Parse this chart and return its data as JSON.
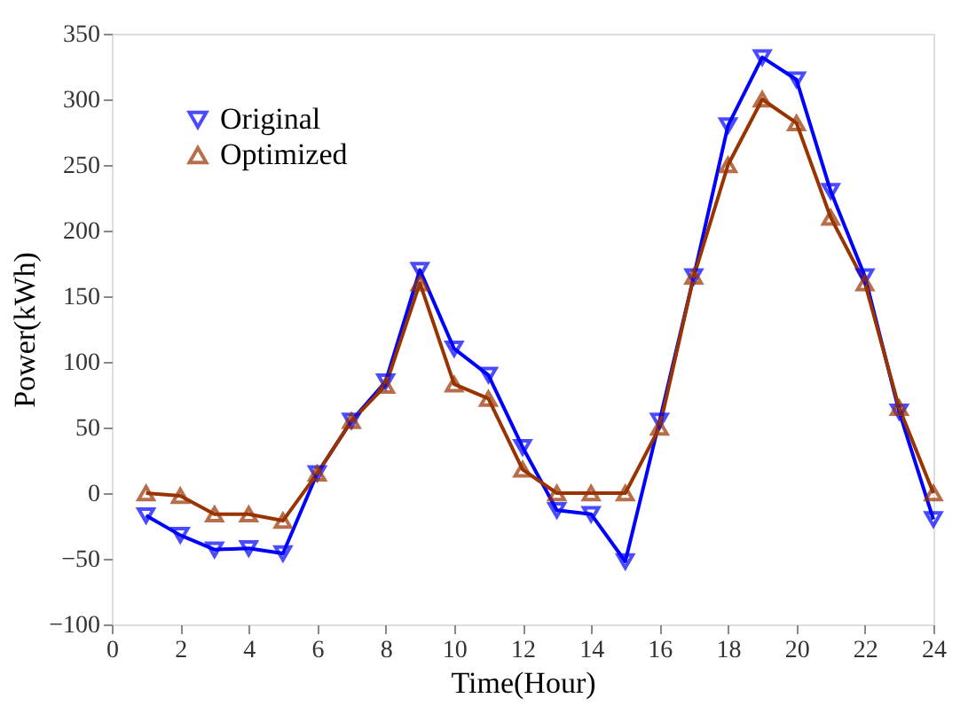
{
  "chart_data": {
    "type": "line",
    "xlabel": "Time(Hour)",
    "ylabel": "Power(kWh)",
    "x": [
      1,
      2,
      3,
      4,
      5,
      6,
      7,
      8,
      9,
      10,
      11,
      12,
      13,
      14,
      15,
      16,
      17,
      18,
      19,
      20,
      21,
      22,
      23,
      24
    ],
    "series": [
      {
        "name": "Original",
        "color": "#0000ff",
        "marker": "triangle-down",
        "values": [
          -17,
          -32,
          -43,
          -42,
          -46,
          15,
          55,
          85,
          170,
          110,
          90,
          35,
          -13,
          -16,
          -52,
          55,
          165,
          280,
          332,
          315,
          230,
          165,
          62,
          -20
        ]
      },
      {
        "name": "Optimized",
        "color": "#993300",
        "marker": "triangle",
        "values": [
          0,
          -2,
          -16,
          -16,
          -21,
          15,
          55,
          82,
          160,
          83,
          72,
          18,
          0,
          0,
          0,
          50,
          165,
          250,
          300,
          282,
          210,
          160,
          65,
          0
        ]
      }
    ],
    "xlim": [
      0,
      24
    ],
    "xticks": [
      0,
      2,
      4,
      6,
      8,
      10,
      12,
      14,
      16,
      18,
      20,
      22,
      24
    ],
    "ylim": [
      -100,
      350
    ],
    "yticks": [
      -100,
      -50,
      0,
      50,
      100,
      150,
      200,
      250,
      300,
      350
    ],
    "grid": false,
    "legend": "top left",
    "line_style": "solid"
  }
}
